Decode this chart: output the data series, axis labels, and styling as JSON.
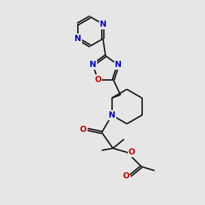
{
  "background_color": "#e6e6e6",
  "bond_color": "#1a1a1a",
  "nitrogen_color": "#0000cc",
  "oxygen_color": "#cc0000",
  "bond_width": 1.5,
  "fig_width": 3.0,
  "fig_height": 3.0,
  "dpi": 100,
  "font_size": 8.5,
  "xlim": [
    0,
    10
  ],
  "ylim": [
    0,
    10
  ]
}
